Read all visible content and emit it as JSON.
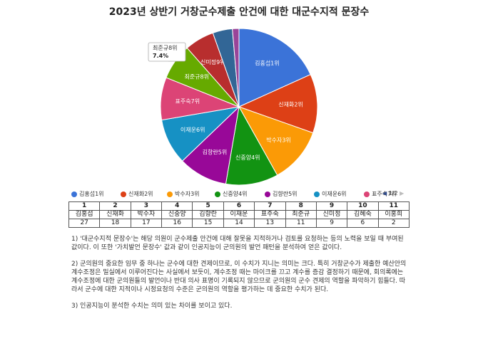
{
  "title": "2023년 상반기 거창군수제출 안건에 대한 대군수지적 문장수",
  "chart_data": {
    "type": "pie",
    "title": "2023년 상반기 거창군수제출 안건에 대한 대군수지적 문장수",
    "slices": [
      {
        "label": "김홍섭1위",
        "value": 27,
        "color": "#3b73d8"
      },
      {
        "label": "신재화2위",
        "value": 18,
        "color": "#dd4016"
      },
      {
        "label": "박수자3위",
        "value": 17,
        "color": "#fb9a06"
      },
      {
        "label": "신중양4위",
        "value": 16,
        "color": "#129312"
      },
      {
        "label": "김향란5위",
        "value": 15,
        "color": "#980898"
      },
      {
        "label": "이재운6위",
        "value": 14,
        "color": "#1691c4"
      },
      {
        "label": "표주숙7위",
        "value": 13,
        "color": "#dc4476"
      },
      {
        "label": "최준규8위",
        "value": 11,
        "color": "#66aa00"
      },
      {
        "label": "신미정9위",
        "value": 9,
        "color": "#b82e2e"
      },
      {
        "label": "김혜숙10위",
        "value": 6,
        "color": "#326696"
      },
      {
        "label": "이홍희11위",
        "value": 2,
        "color": "#994499"
      }
    ],
    "tooltip": {
      "label": "최준규8위",
      "value": "7.4%"
    },
    "legend_placement": "bottom",
    "legend_page": "1/2"
  },
  "legend": {
    "items": [
      {
        "label": "김홍섭1위",
        "color": "#3b73d8"
      },
      {
        "label": "신재화2위",
        "color": "#dd4016"
      },
      {
        "label": "박수자3위",
        "color": "#fb9a06"
      },
      {
        "label": "신중양4위",
        "color": "#129312"
      },
      {
        "label": "김향란5위",
        "color": "#980898"
      },
      {
        "label": "이재운6위",
        "color": "#1691c4"
      },
      {
        "label": "표주숙7위",
        "color": "#dc4476"
      }
    ],
    "page": "1/2",
    "prev_icon": "triangle-left-icon",
    "next_icon": "triangle-right-icon"
  },
  "table": {
    "ranks": [
      "1",
      "2",
      "3",
      "4",
      "5",
      "6",
      "7",
      "8",
      "9",
      "10",
      "11"
    ],
    "names": [
      "김홍섭",
      "신재화",
      "박수자",
      "신중양",
      "김향란",
      "이재운",
      "표주숙",
      "최준규",
      "신미정",
      "김혜숙",
      "이홍희"
    ],
    "counts": [
      "27",
      "18",
      "17",
      "16",
      "15",
      "14",
      "13",
      "11",
      "9",
      "6",
      "2"
    ]
  },
  "notes": [
    "1) '대군수지적 문장수'는 해당 의원이 군수제출 안건에 대해 잘못을 지적하거나 검토를 요청하는 등의 노력을 보일 때 부여된 값이다. 이 또한 '가치발언 문장수' 값과 같이 인공지능이 군의원의 발언 패턴을 분석하여 얻은 값이다.",
    "2) 군의원의 중요한 임무 중 하나는 군수에 대한 견제이므로, 이 수치가 지니는 의미는 크다. 특히 거창군수가 제출한 예산안의 계수조정은 밀실에서 이루어진다는 사실에서 보듯이, 계수조정 때는 마이크를 끄고 계수를 증감 결정하기 때문에, 회의록에는 계수조정에 대한 군의원들의 발언이나 반대 의사 표명이 기록되지 않으므로 군의원의 군수 견제의 역할을 파악하기 힘들다. 따라서 군수에 대한 지적이나 시정요청의 수준은 군의원의 역할을 평가하는 데 중요한 수치가 된다.",
    "3) 인공지능이 분석한 수치는 의미 있는 차이를 보이고 있다."
  ]
}
